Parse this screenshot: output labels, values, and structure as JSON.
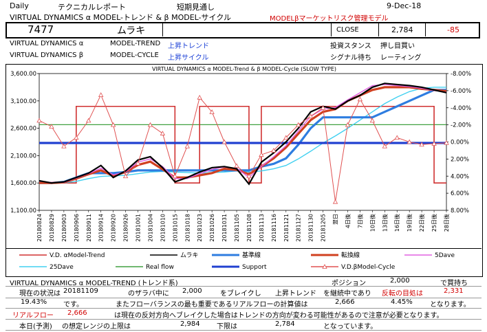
{
  "header": {
    "period": "Daily",
    "report_type": "テクニカルレポート",
    "outlook": "短期見通し",
    "date": "9-Dec-18",
    "title": "VIRTUAL DYNAMICS α MODEL-トレンド & β MODEL-サイクル",
    "subtitle": "MODELβマーケットリスク管理モデル"
  },
  "quote": {
    "code": "7477",
    "name": "ムラキ",
    "close_label": "CLOSE",
    "close_value": "2,784",
    "change": "-85"
  },
  "models": {
    "alpha_label": "VIRTUAL DYNAMICS α",
    "alpha_model": "MODEL-TREND",
    "alpha_state": "上昇トレンド",
    "alpha_stance_label": "投資スタンス",
    "alpha_stance": "押し目買い",
    "beta_label": "VIRTUAL DYNAMICS β",
    "beta_model": "MODEL-CYCLE",
    "beta_state": "上昇サイクル",
    "beta_signal_label": "シグナル待ち",
    "beta_signal": "レーティング"
  },
  "chart_data": {
    "type": "line",
    "title": "VIRTUAL DYNAMICS α MODEL-Trend & β MODEL-Cycle (SLOW TYPE)",
    "x_labels": [
      "20180824",
      "20180829",
      "20180903",
      "20180906",
      "20180911",
      "20180914",
      "20180920",
      "20180926",
      "20181001",
      "20181004",
      "20181010",
      "20181015",
      "20181018",
      "20181023",
      "20181026",
      "20181031",
      "20181105",
      "20181108",
      "20181113",
      "20181116",
      "20181121",
      "20181127",
      "20181130",
      "20181205",
      "翌日",
      "4日後",
      "7日後",
      "10日後",
      "13日後",
      "16日後",
      "19日後",
      "22日後",
      "25日後",
      "28日後"
    ],
    "y_left_ticks": [
      "3,600.00",
      "3,100.00",
      "2,600.00",
      "2,100.00",
      "1,600.00",
      "1,100.00"
    ],
    "ylim_left": [
      1100,
      3600
    ],
    "y_right_ticks": [
      "-8.00%",
      "-6.00%",
      "-4.00%",
      "-2.00%",
      "0.00%",
      "2.00%",
      "4.00%",
      "6.00%",
      "8.00%"
    ],
    "ylim_right": [
      8,
      -8
    ],
    "series": [
      {
        "name": "V.D. αModel-Trend",
        "color": "#d03030",
        "values": [
          1600,
          1600,
          1600,
          3000,
          3000,
          3000,
          3000,
          3000,
          3000,
          3000,
          3000,
          1600,
          1600,
          3000,
          3000,
          3000,
          3000,
          1600,
          3000,
          3000,
          3000,
          3000,
          3000,
          3000,
          3000,
          3000,
          3000,
          3000,
          3000,
          3000,
          3000,
          3000,
          1600,
          1600
        ]
      },
      {
        "name": "ムラキ",
        "color": "#000000",
        "values": [
          1640,
          1600,
          1620,
          1700,
          1780,
          1920,
          1700,
          1820,
          2020,
          2080,
          1880,
          1620,
          1700,
          1800,
          1880,
          1900,
          1860,
          1580,
          1980,
          2150,
          2350,
          2600,
          2900,
          3000,
          2950,
          3100,
          3200,
          3350,
          3420,
          3400,
          3380,
          3350,
          3300,
          3250
        ]
      },
      {
        "name": "基準線",
        "color": "#2e7de0",
        "values": [
          1600,
          1600,
          1620,
          1700,
          1780,
          1780,
          1780,
          1800,
          1830,
          1830,
          1830,
          1830,
          1830,
          1830,
          1830,
          1830,
          1830,
          1830,
          1900,
          1950,
          2050,
          2300,
          2600,
          2800,
          2800,
          2800,
          2800,
          2800,
          2900,
          3000,
          3100,
          3200,
          3300,
          3300
        ]
      },
      {
        "name": "転換線",
        "color": "#d04020",
        "values": [
          1600,
          1600,
          1610,
          1680,
          1760,
          1830,
          1730,
          1800,
          1930,
          1990,
          1850,
          1700,
          1700,
          1740,
          1780,
          1860,
          1840,
          1760,
          1900,
          2050,
          2250,
          2500,
          2750,
          2900,
          2950,
          3100,
          3200,
          3300,
          3350,
          3350,
          3350,
          3320,
          3300,
          3280
        ]
      },
      {
        "name": "5Dave",
        "color": "#e060e0",
        "values": [
          1630,
          1610,
          1610,
          1690,
          1770,
          1870,
          1750,
          1800,
          1980,
          2040,
          1900,
          1680,
          1680,
          1770,
          1850,
          1890,
          1870,
          1700,
          1900,
          2080,
          2280,
          2550,
          2820,
          2950,
          2980,
          3120,
          3250,
          3380,
          3400,
          3380,
          3360,
          3330,
          3290,
          3260
        ]
      },
      {
        "name": "25Dave",
        "color": "#40d0f0",
        "values": [
          1600,
          1600,
          1600,
          1630,
          1680,
          1720,
          1730,
          1740,
          1770,
          1800,
          1810,
          1800,
          1790,
          1780,
          1790,
          1800,
          1820,
          1800,
          1820,
          1860,
          1920,
          2040,
          2180,
          2330,
          2460,
          2600,
          2750,
          2900,
          3050,
          3170,
          3270,
          3330,
          3350,
          3350
        ]
      },
      {
        "name": "Real flow",
        "color": "#40a040",
        "values": [
          2666,
          2666,
          2666,
          2666,
          2666,
          2666,
          2666,
          2666,
          2666,
          2666,
          2666,
          2666,
          2666,
          2666,
          2666,
          2666,
          2666,
          2666,
          2666,
          2666,
          2666,
          2666,
          2666,
          2666,
          2666,
          2666,
          2666,
          2666,
          2666,
          2666,
          2666,
          2666,
          2666,
          2666
        ]
      },
      {
        "name": "Support",
        "color": "#2040d0",
        "values": [
          2331,
          2331,
          2331,
          2331,
          2331,
          2331,
          2331,
          2331,
          2331,
          2331,
          2331,
          2331,
          2331,
          2331,
          2331,
          2331,
          2331,
          2331,
          2331,
          2331,
          2331,
          2331,
          2331,
          2331,
          2331,
          2331,
          2331,
          2331,
          2331,
          2331,
          2331,
          2331,
          2331,
          2331
        ]
      },
      {
        "name": "V.D.βModel-Cycle",
        "color": "#e05050",
        "axis": "right",
        "values": [
          -2.5,
          -1.8,
          0.5,
          -0.5,
          -2.5,
          -5.5,
          -2.0,
          4.0,
          2.5,
          -2.0,
          -1.0,
          4.0,
          0.5,
          -5.2,
          -3.5,
          0.0,
          2.8,
          4.0,
          1.5,
          1.0,
          -0.5,
          -2.0,
          -3.0,
          -4.0,
          7.0,
          -2.0,
          -5.0,
          -2.5,
          0.5,
          -0.5,
          0.0,
          0.3,
          0.2,
          0.1
        ]
      }
    ]
  },
  "legend": [
    {
      "label": "V.D. αModel-Trend"
    },
    {
      "label": "ムラキ"
    },
    {
      "label": "基準線"
    },
    {
      "label": "転換線"
    },
    {
      "label": "5Dave"
    },
    {
      "label": "25Dave"
    },
    {
      "label": "Real flow"
    },
    {
      "label": "Support"
    },
    {
      "label": "V.D.βModel-Cycle"
    }
  ],
  "table": {
    "section_label": "VIRTUAL DYNAMICS α  MODEL-TREND  (トレンド系)",
    "position_label": "ポジション",
    "position_value": "2,000",
    "position_note": "で買持ち",
    "r1_label": "現在の状況は",
    "r1_date": "20181109",
    "r1_text1": "のザラバ中に",
    "r1_value": "2,000",
    "r1_text2": "をブレイクし",
    "r1_state": "上昇トレンド",
    "r1_text3": "を継続中であり",
    "r1_target_label": "反転の目処は",
    "r1_target": "2,331",
    "r2_pct": "19.43%",
    "r2_text1": "です。",
    "r2_text2": "またフローバランスの最も重要であるリアルフローの計算値は",
    "r2_value": "2,666",
    "r2_pct2": "4.45%",
    "r2_text3": "となります。",
    "r3_label": "リアルフロー",
    "r3_value": "2,666",
    "r3_text": "は現在の反対方向へブレイクした場合はトレンドの方向が変わる可能性があるので注意が必要となります。",
    "r4_label": "本日(予測)",
    "r4_text1": "の想定レンジの上限は",
    "r4_upper": "2,984",
    "r4_text2": "下限は",
    "r4_lower": "2,784",
    "r4_text3": "となっています。"
  }
}
